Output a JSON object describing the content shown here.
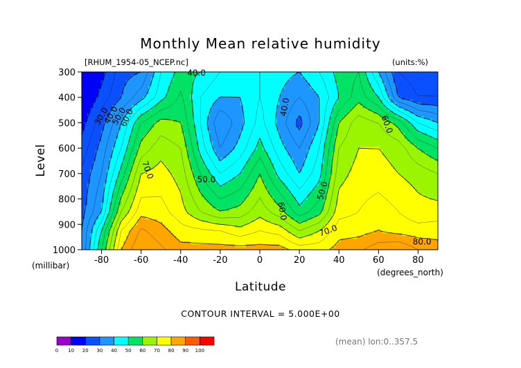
{
  "chart_data": {
    "type": "heatmap",
    "title": "Monthly Mean relative humidity",
    "file_label": "[RHUM_1954-05_NCEP.nc]",
    "units_label": "(units:%)",
    "xlabel": "Latitude",
    "x_unit": "(degrees_north)",
    "ylabel": "Level",
    "y_unit": "(millibar)",
    "x_ticks": [
      -80,
      -60,
      -40,
      -20,
      0,
      20,
      40,
      60,
      80
    ],
    "y_ticks": [
      300,
      400,
      500,
      600,
      700,
      800,
      900,
      1000
    ],
    "xlim": [
      -90,
      90
    ],
    "ylim": [
      1000,
      300
    ],
    "contour_interval_text": "CONTOUR INTERVAL = 5.000E+00",
    "footer_text": "(mean) lon:0..357.5",
    "contour_labels": [
      "40.0",
      "30.0",
      "40.0",
      "50.0",
      "60.0",
      "40.0",
      "60.0",
      "70.0",
      "50.0",
      "50.0",
      "60.0",
      "70.0",
      "80.0"
    ],
    "colorbar": {
      "levels": [
        0,
        10,
        20,
        30,
        40,
        50,
        60,
        70,
        80,
        90,
        100
      ],
      "colors": [
        "#9900cc",
        "#0000ff",
        "#0a50ff",
        "#1e96ff",
        "#00ffff",
        "#00e264",
        "#9cf500",
        "#ffff00",
        "#ffa500",
        "#ff5a00",
        "#ff0000"
      ]
    },
    "grid_lats": [
      -90,
      -80,
      -70,
      -60,
      -50,
      -40,
      -30,
      -20,
      -10,
      0,
      10,
      20,
      30,
      40,
      50,
      60,
      70,
      80,
      90
    ],
    "grid_levels": [
      300,
      400,
      500,
      600,
      700,
      850,
      925,
      1000
    ],
    "values": [
      [
        10,
        18,
        28,
        30,
        45,
        52,
        50,
        45,
        42,
        45,
        42,
        40,
        45,
        52,
        55,
        40,
        25,
        22,
        22
      ],
      [
        14,
        22,
        30,
        38,
        48,
        56,
        45,
        40,
        40,
        45,
        40,
        35,
        40,
        50,
        58,
        50,
        30,
        25,
        25
      ],
      [
        18,
        28,
        40,
        55,
        62,
        60,
        45,
        30,
        38,
        47,
        38,
        28,
        40,
        60,
        68,
        65,
        58,
        45,
        40
      ],
      [
        22,
        32,
        45,
        62,
        68,
        65,
        48,
        35,
        42,
        52,
        42,
        35,
        45,
        65,
        70,
        70,
        68,
        60,
        55
      ],
      [
        26,
        35,
        52,
        70,
        72,
        68,
        55,
        45,
        50,
        60,
        48,
        40,
        48,
        68,
        72,
        72,
        70,
        68,
        65
      ],
      [
        28,
        40,
        65,
        78,
        77,
        72,
        65,
        60,
        62,
        68,
        62,
        52,
        58,
        73,
        75,
        78,
        75,
        72,
        72
      ],
      [
        30,
        50,
        75,
        86,
        82,
        77,
        76,
        75,
        72,
        75,
        73,
        65,
        70,
        78,
        78,
        80,
        78,
        77,
        78
      ],
      [
        30,
        55,
        80,
        90,
        86,
        82,
        82,
        82,
        82,
        82,
        82,
        78,
        78,
        82,
        84,
        88,
        90,
        85,
        82
      ]
    ]
  }
}
